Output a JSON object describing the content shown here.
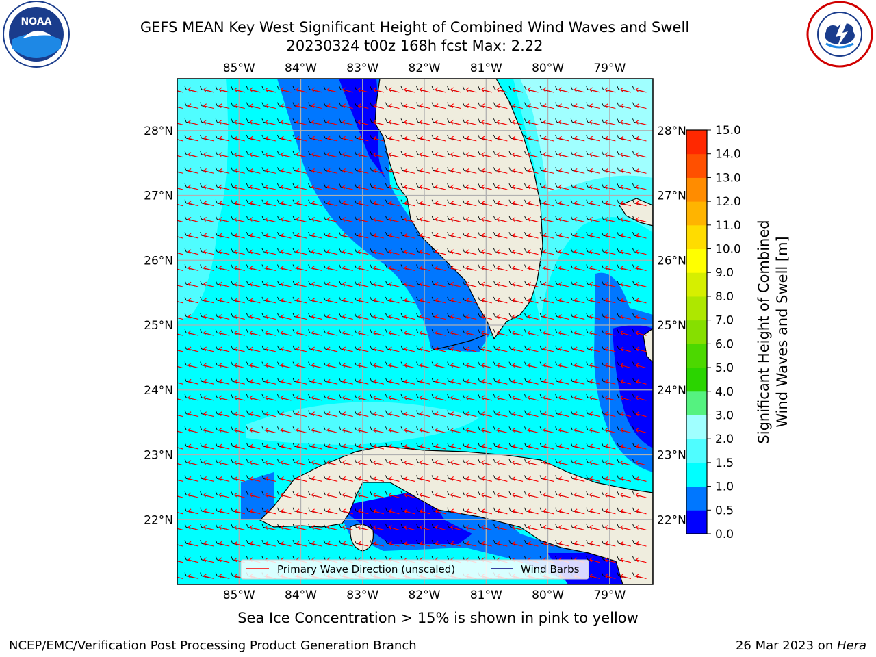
{
  "title_line1": "GEFS MEAN Key West Significant Height of Combined Wind Waves and Swell",
  "title_line2": "20230324 t00z 168h fcst   Max: 2.22",
  "footer_note": "Sea Ice Concentration > 15% is shown in pink to yellow",
  "footer_credit": "NCEP/EMC/Verification Post Processing Product Generation Branch",
  "footer_date": "26 Mar 2023 on ",
  "footer_host": "Hera",
  "logos": {
    "left": "noaa-logo",
    "right": "nws-logo",
    "left_text": "NOAA"
  },
  "chart_data": {
    "type": "heatmap",
    "title": "GEFS MEAN Key West Significant Height of Combined Wind Waves and Swell",
    "subtitle": "20230324 t00z 168h fcst   Max: 2.22",
    "max_value": 2.22,
    "lon_ticks": [
      "85°W",
      "84°W",
      "83°W",
      "82°W",
      "81°W",
      "80°W",
      "79°W"
    ],
    "lat_ticks": [
      "28°N",
      "27°N",
      "26°N",
      "25°N",
      "24°N",
      "23°N",
      "22°N"
    ],
    "lon_range": [
      -86.0,
      -78.3
    ],
    "lat_range": [
      21.0,
      28.8
    ],
    "grid": true,
    "colorbar": {
      "label": "Significant Height of Combined Wind Waves and Swell [m]",
      "label_line1": "Significant Height of Combined",
      "label_line2": "Wind Waves and Swell [m]",
      "levels": [
        0.0,
        0.5,
        1.0,
        1.5,
        2.0,
        3.0,
        4.0,
        5.0,
        6.0,
        7.0,
        8.0,
        9.0,
        10.0,
        11.0,
        12.0,
        13.0,
        14.0,
        15.0
      ],
      "tick_labels": [
        "0.0",
        "0.5",
        "1.0",
        "1.5",
        "2.0",
        "3.0",
        "4.0",
        "5.0",
        "6.0",
        "7.0",
        "8.0",
        "9.0",
        "10.0",
        "11.0",
        "12.0",
        "13.0",
        "14.0",
        "15.0"
      ],
      "colors": [
        "#0000ff",
        "#0077ff",
        "#00ffff",
        "#4ffdff",
        "#a0ffff",
        "#55f280",
        "#2bd400",
        "#4cd800",
        "#86df00",
        "#aee700",
        "#d6ef00",
        "#ffff00",
        "#ffdc00",
        "#ffb400",
        "#ff8c00",
        "#ff5000",
        "#ff2800"
      ]
    },
    "legend": {
      "position": "bottom-center",
      "items": [
        {
          "label": "Primary Wave Direction (unscaled)",
          "color": "#ff0000"
        },
        {
          "label": "Wind Barbs",
          "color": "#000080"
        }
      ]
    },
    "wave_direction": "toward west-northwest",
    "wind_barbs": "from east-southeast",
    "colors": {
      "land": "#efedde",
      "ocean_default": "#00ffff",
      "grid": "#b0b0b0"
    }
  }
}
